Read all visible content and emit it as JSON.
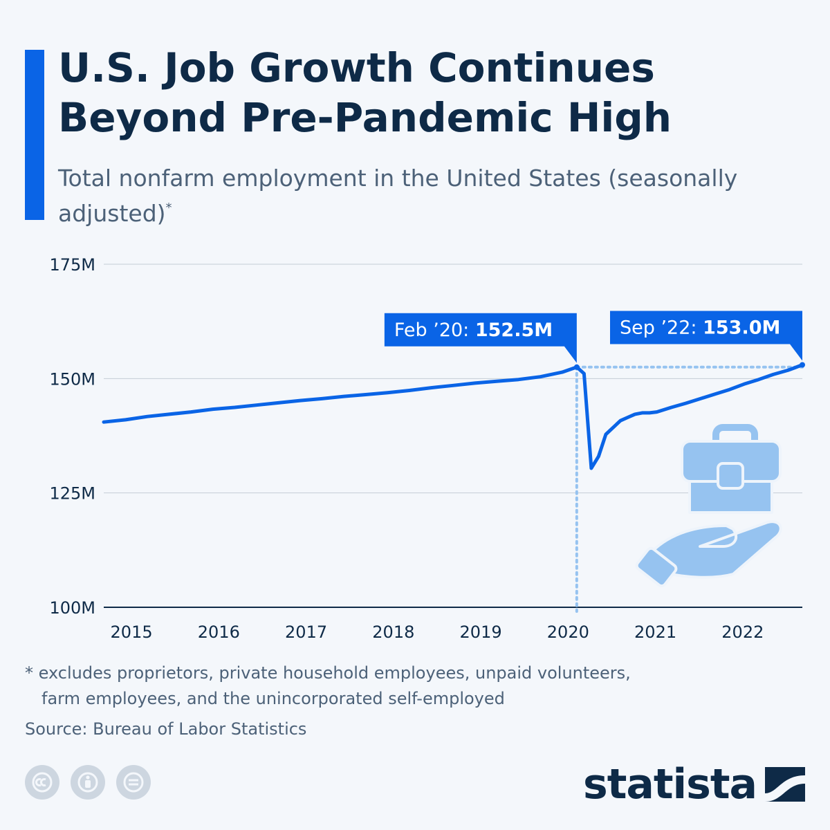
{
  "header": {
    "title": "U.S. Job Growth Continues Beyond Pre-Pandemic High",
    "subtitle": "Total nonfarm employment in the United States (seasonally adjusted)",
    "subtitle_marker": "*"
  },
  "chart_data": {
    "type": "line",
    "title": "U.S. Job Growth Continues Beyond Pre-Pandemic High",
    "subtitle": "Total nonfarm employment in the United States (seasonally adjusted)",
    "ylabel": "",
    "xlabel": "",
    "y_unit": "M",
    "ylim": [
      100,
      175
    ],
    "yticks": [
      {
        "value": 100,
        "label": "100M"
      },
      {
        "value": 125,
        "label": "125M"
      },
      {
        "value": 150,
        "label": "150M"
      },
      {
        "value": 175,
        "label": "175M"
      }
    ],
    "xlim": [
      "2014-09",
      "2022-09"
    ],
    "xticks": [
      {
        "value": "2015-01",
        "label": "2015"
      },
      {
        "value": "2016-01",
        "label": "2016"
      },
      {
        "value": "2017-01",
        "label": "2017"
      },
      {
        "value": "2018-01",
        "label": "2018"
      },
      {
        "value": "2019-01",
        "label": "2019"
      },
      {
        "value": "2020-01",
        "label": "2020"
      },
      {
        "value": "2021-01",
        "label": "2021"
      },
      {
        "value": "2022-01",
        "label": "2022"
      }
    ],
    "grid": true,
    "color": "#0a64e6",
    "series": [
      {
        "points": [
          [
            "2014-09",
            140.5
          ],
          [
            "2014-12",
            141.0
          ],
          [
            "2015-03",
            141.7
          ],
          [
            "2015-06",
            142.2
          ],
          [
            "2015-09",
            142.7
          ],
          [
            "2015-12",
            143.3
          ],
          [
            "2016-03",
            143.7
          ],
          [
            "2016-06",
            144.2
          ],
          [
            "2016-09",
            144.7
          ],
          [
            "2016-12",
            145.2
          ],
          [
            "2017-03",
            145.6
          ],
          [
            "2017-06",
            146.1
          ],
          [
            "2017-09",
            146.5
          ],
          [
            "2017-12",
            146.9
          ],
          [
            "2018-03",
            147.4
          ],
          [
            "2018-06",
            148.0
          ],
          [
            "2018-09",
            148.5
          ],
          [
            "2018-12",
            149.0
          ],
          [
            "2019-03",
            149.4
          ],
          [
            "2019-06",
            149.8
          ],
          [
            "2019-09",
            150.4
          ],
          [
            "2019-12",
            151.4
          ],
          [
            "2020-02",
            152.5
          ],
          [
            "2020-03",
            151.1
          ],
          [
            "2020-04",
            130.4
          ],
          [
            "2020-05",
            133.0
          ],
          [
            "2020-06",
            137.8
          ],
          [
            "2020-07",
            139.3
          ],
          [
            "2020-08",
            140.8
          ],
          [
            "2020-09",
            141.5
          ],
          [
            "2020-10",
            142.2
          ],
          [
            "2020-11",
            142.5
          ],
          [
            "2020-12",
            142.5
          ],
          [
            "2021-01",
            142.7
          ],
          [
            "2021-03",
            143.7
          ],
          [
            "2021-05",
            144.6
          ],
          [
            "2021-07",
            145.6
          ],
          [
            "2021-09",
            146.6
          ],
          [
            "2021-11",
            147.6
          ],
          [
            "2022-01",
            148.8
          ],
          [
            "2022-03",
            149.8
          ],
          [
            "2022-05",
            150.9
          ],
          [
            "2022-07",
            151.8
          ],
          [
            "2022-08",
            152.4
          ],
          [
            "2022-09",
            153.0
          ]
        ]
      }
    ],
    "annotations": [
      {
        "label": "Feb ’20: ",
        "value_label": "152.5M",
        "x": "2020-02",
        "y": 152.5
      },
      {
        "label": "Sep ’22: ",
        "value_label": "153.0M",
        "x": "2022-09",
        "y": 153.0
      }
    ],
    "reference_lines": [
      {
        "orientation": "vertical",
        "x": "2020-02",
        "style": "dotted"
      },
      {
        "orientation": "horizontal",
        "y": 152.5,
        "style": "dotted"
      }
    ]
  },
  "footer": {
    "footnote_line1": "* excludes proprietors, private household employees, unpaid volunteers,",
    "footnote_line2": "farm employees, and the unincorporated self-employed",
    "source": "Source: Bureau of Labor Statistics",
    "logo_text": "statista"
  },
  "icons": {
    "illustration": "briefcase-in-hand-icon",
    "license": [
      "creative-commons-icon",
      "attribution-icon",
      "no-derivatives-icon"
    ],
    "logo": "statista-logo-icon"
  }
}
